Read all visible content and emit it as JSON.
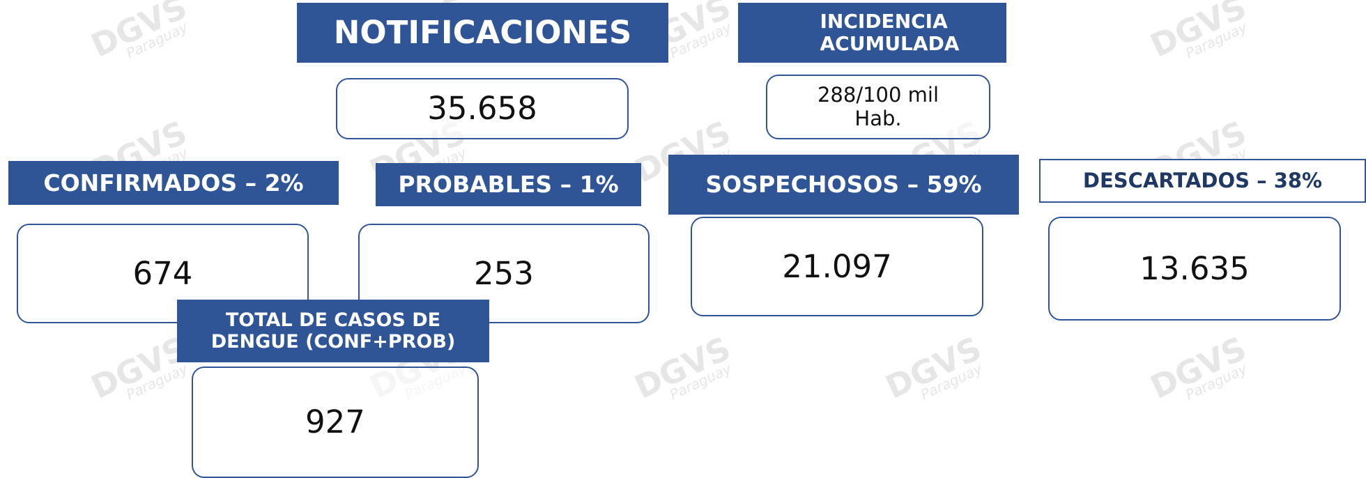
{
  "watermark": {
    "brand": "DGVS",
    "region": "Paraguay"
  },
  "cards": [
    {
      "title": "NOTIFICACIONES",
      "value": "35.658"
    },
    {
      "title": "INCIDENCIA ACUMULADA",
      "value": "288/100 mil Hab."
    },
    {
      "title": "CONFIRMADOS – 2%",
      "value": "674"
    },
    {
      "title": "PROBABLES – 1%",
      "value": "253"
    },
    {
      "title": "SOSPECHOSOS – 59%",
      "value": "21.097"
    },
    {
      "title": "DESCARTADOS – 38%",
      "value": "13.635"
    },
    {
      "title": "TOTAL DE CASOS DE DENGUE (CONF+PROB)",
      "value": "927"
    }
  ]
}
